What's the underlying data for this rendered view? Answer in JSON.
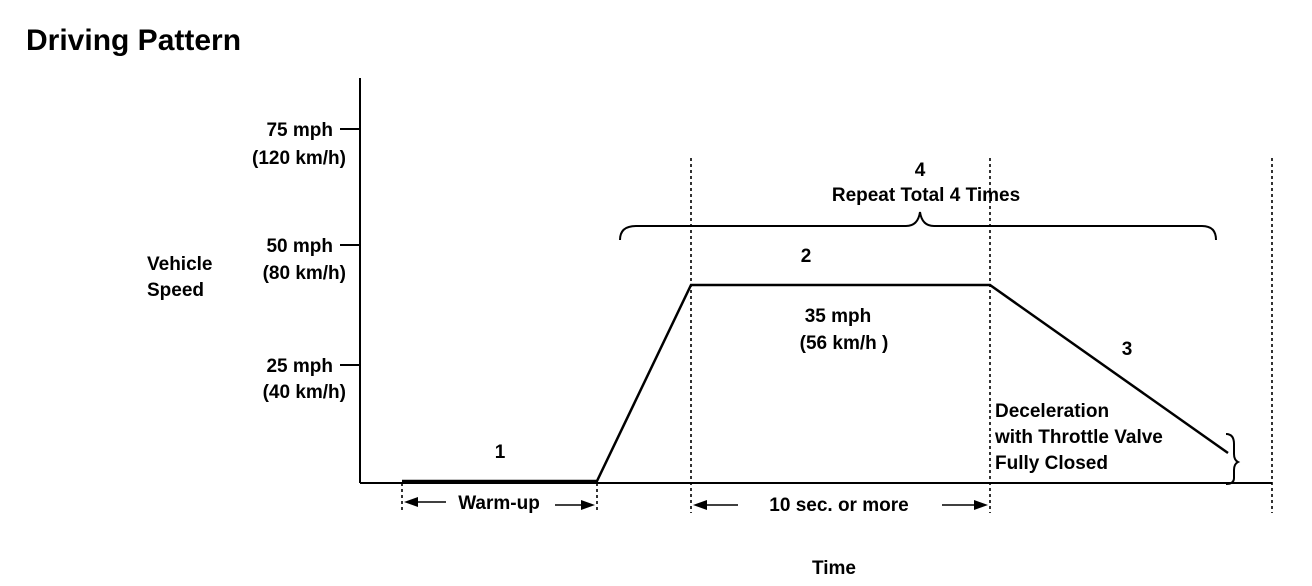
{
  "title": "Driving Pattern",
  "y_axis_label": [
    "Vehicle",
    "Speed"
  ],
  "x_axis_label": "Time",
  "speed_ticks": [
    {
      "mph": "75 mph",
      "kmh": "(120 km/h)"
    },
    {
      "mph": "50 mph",
      "kmh": "(80 km/h)"
    },
    {
      "mph": "25 mph",
      "kmh": "(40 km/h)"
    }
  ],
  "steps": {
    "step1": "1",
    "step2": "2",
    "step3": "3",
    "step4": "4"
  },
  "repeat_label": "Repeat Total 4 Times",
  "cruise_speed": {
    "mph": "35 mph",
    "kmh": "(56 km/h )"
  },
  "decel_label": [
    "Deceleration",
    "with Throttle Valve",
    "Fully Closed"
  ],
  "warmup_label": "Warm-up",
  "duration_label": "10 sec. or more"
}
